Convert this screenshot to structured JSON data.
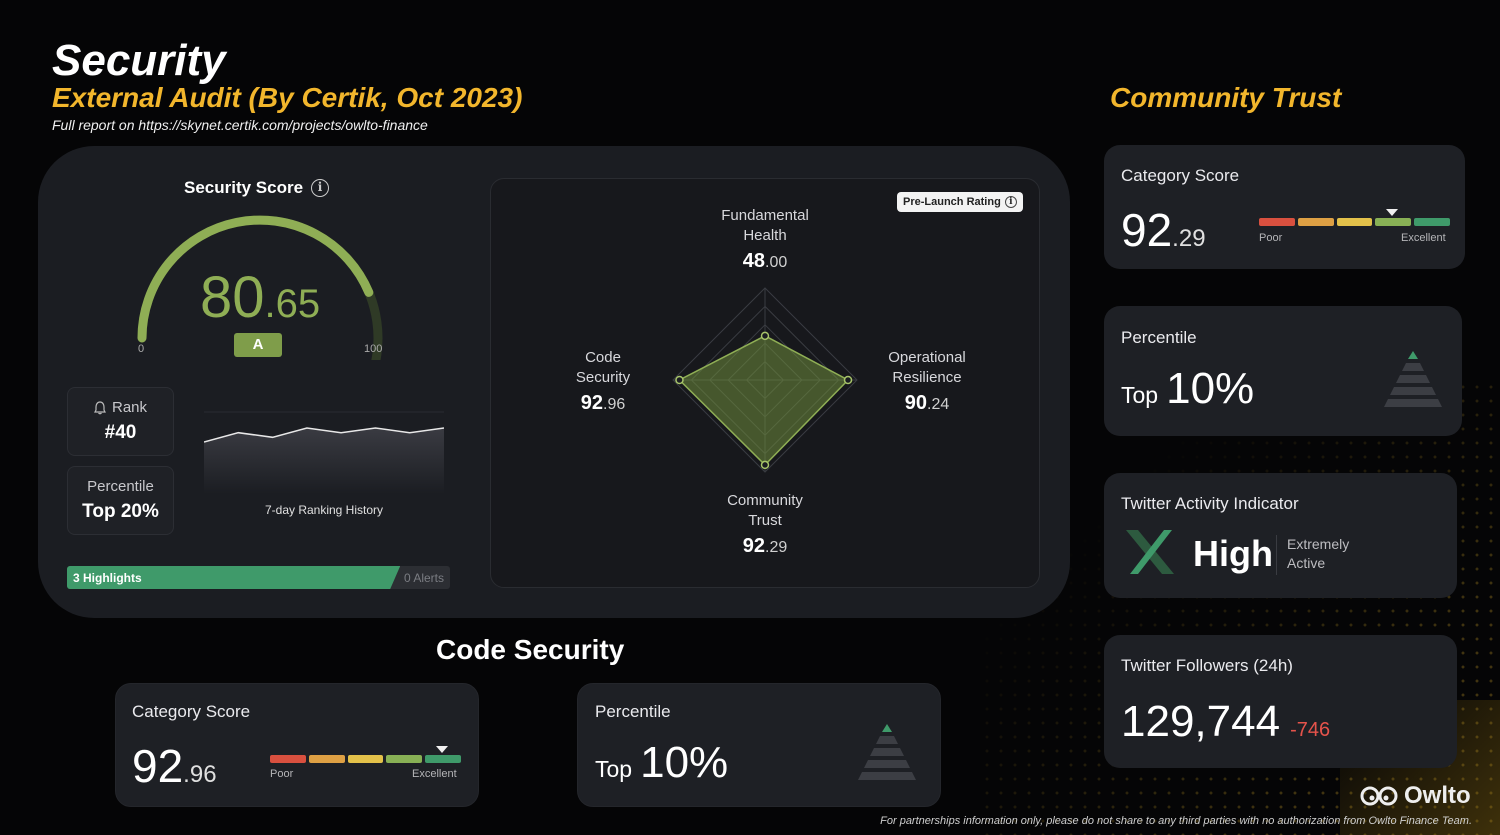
{
  "header": {
    "title": "Security",
    "subtitle": "External Audit (By Certik, Oct 2023)",
    "report": "Full report on https://skynet.certik.com/projects/owlto-finance"
  },
  "security_score": {
    "title": "Security Score",
    "value_int": "80",
    "value_dec": ".65",
    "value": 80.65,
    "grade": "A",
    "min_label": "0",
    "max_label": "100",
    "rank_label": "Rank",
    "rank_value": "#40",
    "percentile_label": "Percentile",
    "percentile_value": "Top 20%",
    "history_label": "7-day Ranking History",
    "highlights": "3 Highlights",
    "alerts": "0 Alerts",
    "history_points": [
      40,
      42,
      41,
      43,
      42,
      43,
      42,
      43
    ],
    "highlights_share": 0.87
  },
  "radar": {
    "badge": "Pre-Launch Rating",
    "axes": [
      {
        "label_1": "Fundamental",
        "label_2": "Health",
        "int": "48",
        "dec": ".00",
        "value": 48.0
      },
      {
        "label_1": "Operational",
        "label_2": "Resilience",
        "int": "90",
        "dec": ".24",
        "value": 90.24
      },
      {
        "label_1": "Community",
        "label_2": "Trust",
        "int": "92",
        "dec": ".29",
        "value": 92.29
      },
      {
        "label_1": "Code",
        "label_2": "Security",
        "int": "92",
        "dec": ".96",
        "value": 92.96
      }
    ]
  },
  "community": {
    "heading": "Community Trust",
    "category_label": "Category Score",
    "score_int": "92",
    "score_dec": ".29",
    "poor": "Poor",
    "excellent": "Excellent",
    "percentile_label": "Percentile",
    "top_word": "Top",
    "top_value": "10%",
    "twitter_title": "Twitter Activity Indicator",
    "twitter_level": "High",
    "twitter_desc_1": "Extremely",
    "twitter_desc_2": "Active",
    "followers_title": "Twitter Followers (24h)",
    "followers_value": "129,744",
    "followers_change": "-746"
  },
  "code_security": {
    "heading": "Code Security",
    "category_label": "Category Score",
    "score_int": "92",
    "score_dec": ".96",
    "poor": "Poor",
    "excellent": "Excellent",
    "percentile_label": "Percentile",
    "top_word": "Top",
    "top_value": "10%"
  },
  "footer": {
    "note": "For partnerships information only, please do not share to any third parties with no authorization from Owlto Finance Team.",
    "brand": "Owlto"
  },
  "colors": {
    "accent_gold": "#f2b62c",
    "score_green": "#8fae55",
    "highlight_green": "#3f9a6a",
    "scale": [
      "#d9503f",
      "#dea044",
      "#e3c14a",
      "#88b055",
      "#3f9a6a"
    ],
    "negative": "#e5534b"
  }
}
